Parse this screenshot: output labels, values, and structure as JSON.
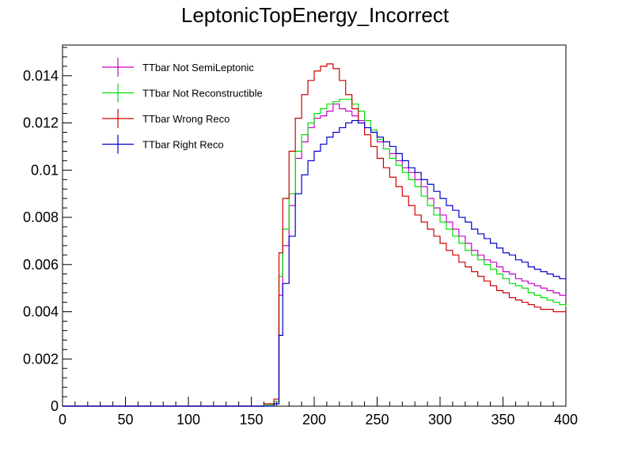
{
  "chart_data": {
    "type": "line",
    "title": "LeptonicTopEnergy_Incorrect",
    "xlabel": "",
    "ylabel": "",
    "xlim": [
      0,
      400
    ],
    "ylim": [
      0,
      0.0153
    ],
    "x_ticks": [
      0,
      50,
      100,
      150,
      200,
      250,
      300,
      350,
      400
    ],
    "y_ticks": [
      0,
      0.002,
      0.004,
      0.006,
      0.008,
      0.01,
      0.012,
      0.014
    ],
    "y_tick_labels": [
      "0",
      "0.002",
      "0.004",
      "0.006",
      "0.008",
      "0.01",
      "0.012",
      "0.014"
    ],
    "grid": false,
    "legend_position": "top-left",
    "x": [
      150,
      160,
      168,
      172,
      175,
      180,
      185,
      190,
      195,
      200,
      205,
      210,
      215,
      220,
      225,
      230,
      235,
      240,
      245,
      250,
      255,
      260,
      265,
      270,
      275,
      280,
      285,
      290,
      295,
      300,
      305,
      310,
      315,
      320,
      325,
      330,
      335,
      340,
      345,
      350,
      355,
      360,
      365,
      370,
      375,
      380,
      385,
      390,
      395,
      400
    ],
    "series": [
      {
        "name": "TTbar Not SemiLeptonic",
        "color": "#cc00cc",
        "values": [
          0,
          5e-05,
          0.0001,
          0.0047,
          0.0068,
          0.0085,
          0.0105,
          0.0112,
          0.0118,
          0.0122,
          0.0123,
          0.0125,
          0.0128,
          0.0126,
          0.0125,
          0.0123,
          0.0121,
          0.0118,
          0.0116,
          0.0112,
          0.0109,
          0.0107,
          0.0104,
          0.0101,
          0.0099,
          0.0096,
          0.0093,
          0.0088,
          0.0084,
          0.0081,
          0.0078,
          0.0075,
          0.0072,
          0.0069,
          0.0066,
          0.0064,
          0.0062,
          0.0061,
          0.0059,
          0.0057,
          0.0056,
          0.0054,
          0.0053,
          0.0052,
          0.0051,
          0.005,
          0.0049,
          0.0048,
          0.0047,
          0.0046
        ]
      },
      {
        "name": "TTbar Not Reconstructible",
        "color": "#00e000",
        "values": [
          0,
          5e-05,
          0.0002,
          0.0055,
          0.0075,
          0.009,
          0.0108,
          0.0115,
          0.012,
          0.0124,
          0.0126,
          0.0128,
          0.0129,
          0.013,
          0.013,
          0.0128,
          0.0125,
          0.0121,
          0.0117,
          0.0113,
          0.0109,
          0.0105,
          0.0102,
          0.0099,
          0.0096,
          0.0093,
          0.0089,
          0.0085,
          0.0081,
          0.0078,
          0.0075,
          0.0072,
          0.0069,
          0.0066,
          0.0064,
          0.0062,
          0.006,
          0.0058,
          0.0056,
          0.0054,
          0.0052,
          0.0051,
          0.005,
          0.0048,
          0.0047,
          0.0046,
          0.0045,
          0.0044,
          0.0043,
          0.0042
        ]
      },
      {
        "name": "TTbar Wrong Reco",
        "color": "#cc0000",
        "values": [
          0,
          0.0001,
          0.0003,
          0.0065,
          0.0088,
          0.0108,
          0.0122,
          0.0132,
          0.0138,
          0.0142,
          0.0144,
          0.0145,
          0.0143,
          0.0138,
          0.0132,
          0.0126,
          0.012,
          0.0115,
          0.011,
          0.0105,
          0.0101,
          0.0097,
          0.0093,
          0.0089,
          0.0085,
          0.0081,
          0.0078,
          0.0075,
          0.0072,
          0.0069,
          0.0066,
          0.0064,
          0.0061,
          0.0059,
          0.0057,
          0.0055,
          0.0053,
          0.0051,
          0.0049,
          0.0048,
          0.0046,
          0.0045,
          0.0044,
          0.0043,
          0.0042,
          0.0041,
          0.0041,
          0.004,
          0.004,
          0.0039
        ]
      },
      {
        "name": "TTbar Right Reco",
        "color": "#0000cc",
        "values": [
          0,
          0,
          0.0001,
          0.003,
          0.0052,
          0.0072,
          0.009,
          0.0098,
          0.0104,
          0.0108,
          0.0111,
          0.0114,
          0.0116,
          0.0118,
          0.012,
          0.0121,
          0.012,
          0.0118,
          0.0116,
          0.0114,
          0.0112,
          0.011,
          0.0107,
          0.0104,
          0.0101,
          0.0099,
          0.0096,
          0.0094,
          0.0091,
          0.0088,
          0.0085,
          0.0083,
          0.008,
          0.0078,
          0.0075,
          0.0073,
          0.0071,
          0.0069,
          0.0067,
          0.0065,
          0.0064,
          0.0062,
          0.0061,
          0.0059,
          0.0058,
          0.0057,
          0.0056,
          0.0055,
          0.0054,
          0.0053
        ]
      }
    ]
  }
}
